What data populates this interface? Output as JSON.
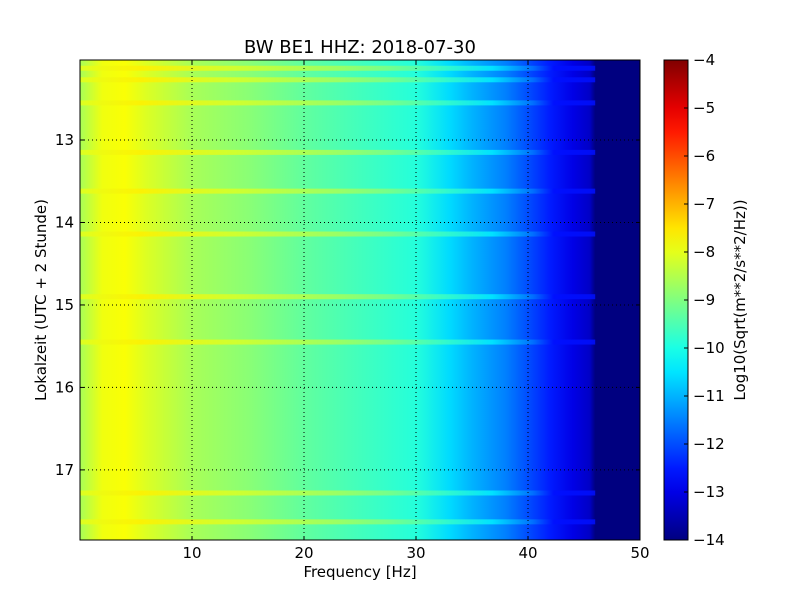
{
  "chart_data": {
    "type": "heatmap",
    "title": "BW BE1 HHZ: 2018-07-30",
    "xlabel": "Frequency [Hz]",
    "ylabel": "Lokalzeit (UTC + 2 Stunde)",
    "xlim": [
      0,
      50
    ],
    "ylim": [
      12.03,
      17.85
    ],
    "y_inverted": true,
    "x_ticks": [
      10,
      20,
      30,
      40,
      50
    ],
    "y_ticks": [
      13,
      14,
      15,
      16,
      17
    ],
    "grid": true,
    "colorbar": {
      "label": "Log10(Sqrt(m**2/s**2/Hz))",
      "range": [
        -14,
        -4
      ],
      "ticks": [
        -4,
        -5,
        -6,
        -7,
        -8,
        -9,
        -10,
        -11,
        -12,
        -13,
        -14
      ],
      "colormap": "jet"
    },
    "spectral_profile": {
      "frequency_hz": [
        0,
        2,
        4,
        6,
        10,
        15,
        20,
        25,
        30,
        33,
        35,
        38,
        40,
        42,
        44,
        45.5,
        46,
        50
      ],
      "log10_psd": [
        -8.6,
        -7.9,
        -7.8,
        -8.1,
        -8.6,
        -8.9,
        -9.3,
        -9.6,
        -9.9,
        -10.6,
        -11.0,
        -11.5,
        -12.0,
        -12.5,
        -13.0,
        -13.3,
        -14.0,
        -14.0
      ]
    },
    "bright_bands_hour": [
      12.13,
      12.27,
      12.55,
      13.15,
      13.62,
      14.14,
      14.9,
      15.45,
      17.28,
      17.63
    ]
  }
}
